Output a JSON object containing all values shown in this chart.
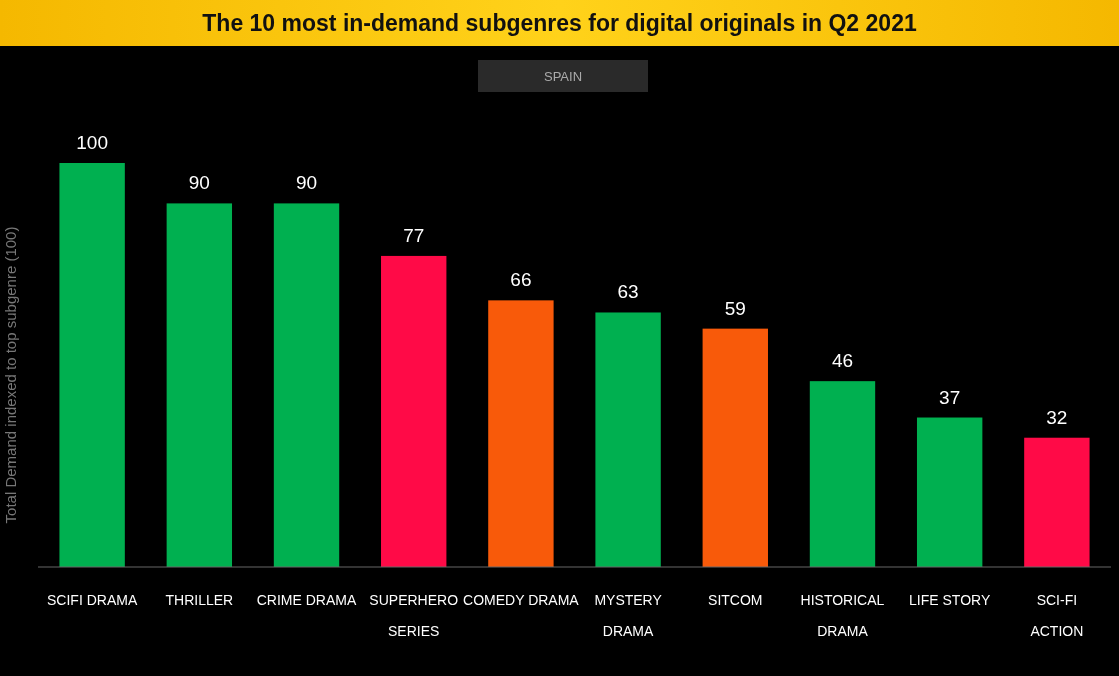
{
  "chart_data": {
    "type": "bar",
    "title": "The 10 most in-demand subgenres for digital originals in Q2 2021",
    "subtitle": "SPAIN",
    "ylabel": "Total Demand indexed to top subgenre (100)",
    "categories": [
      "SCIFI DRAMA",
      "THRILLER",
      "CRIME DRAMA",
      "SUPERHERO SERIES",
      "COMEDY DRAMA",
      "MYSTERY DRAMA",
      "SITCOM",
      "HISTORICAL DRAMA",
      "LIFE STORY",
      "SCI-FI ACTION"
    ],
    "values": [
      100,
      90,
      90,
      77,
      66,
      63,
      59,
      46,
      37,
      32
    ],
    "colors": [
      "#00b050",
      "#00b050",
      "#00b050",
      "#ff0a47",
      "#f85a0a",
      "#00b050",
      "#f85a0a",
      "#00b050",
      "#00b050",
      "#ff0a47"
    ],
    "data_labels": true
  }
}
